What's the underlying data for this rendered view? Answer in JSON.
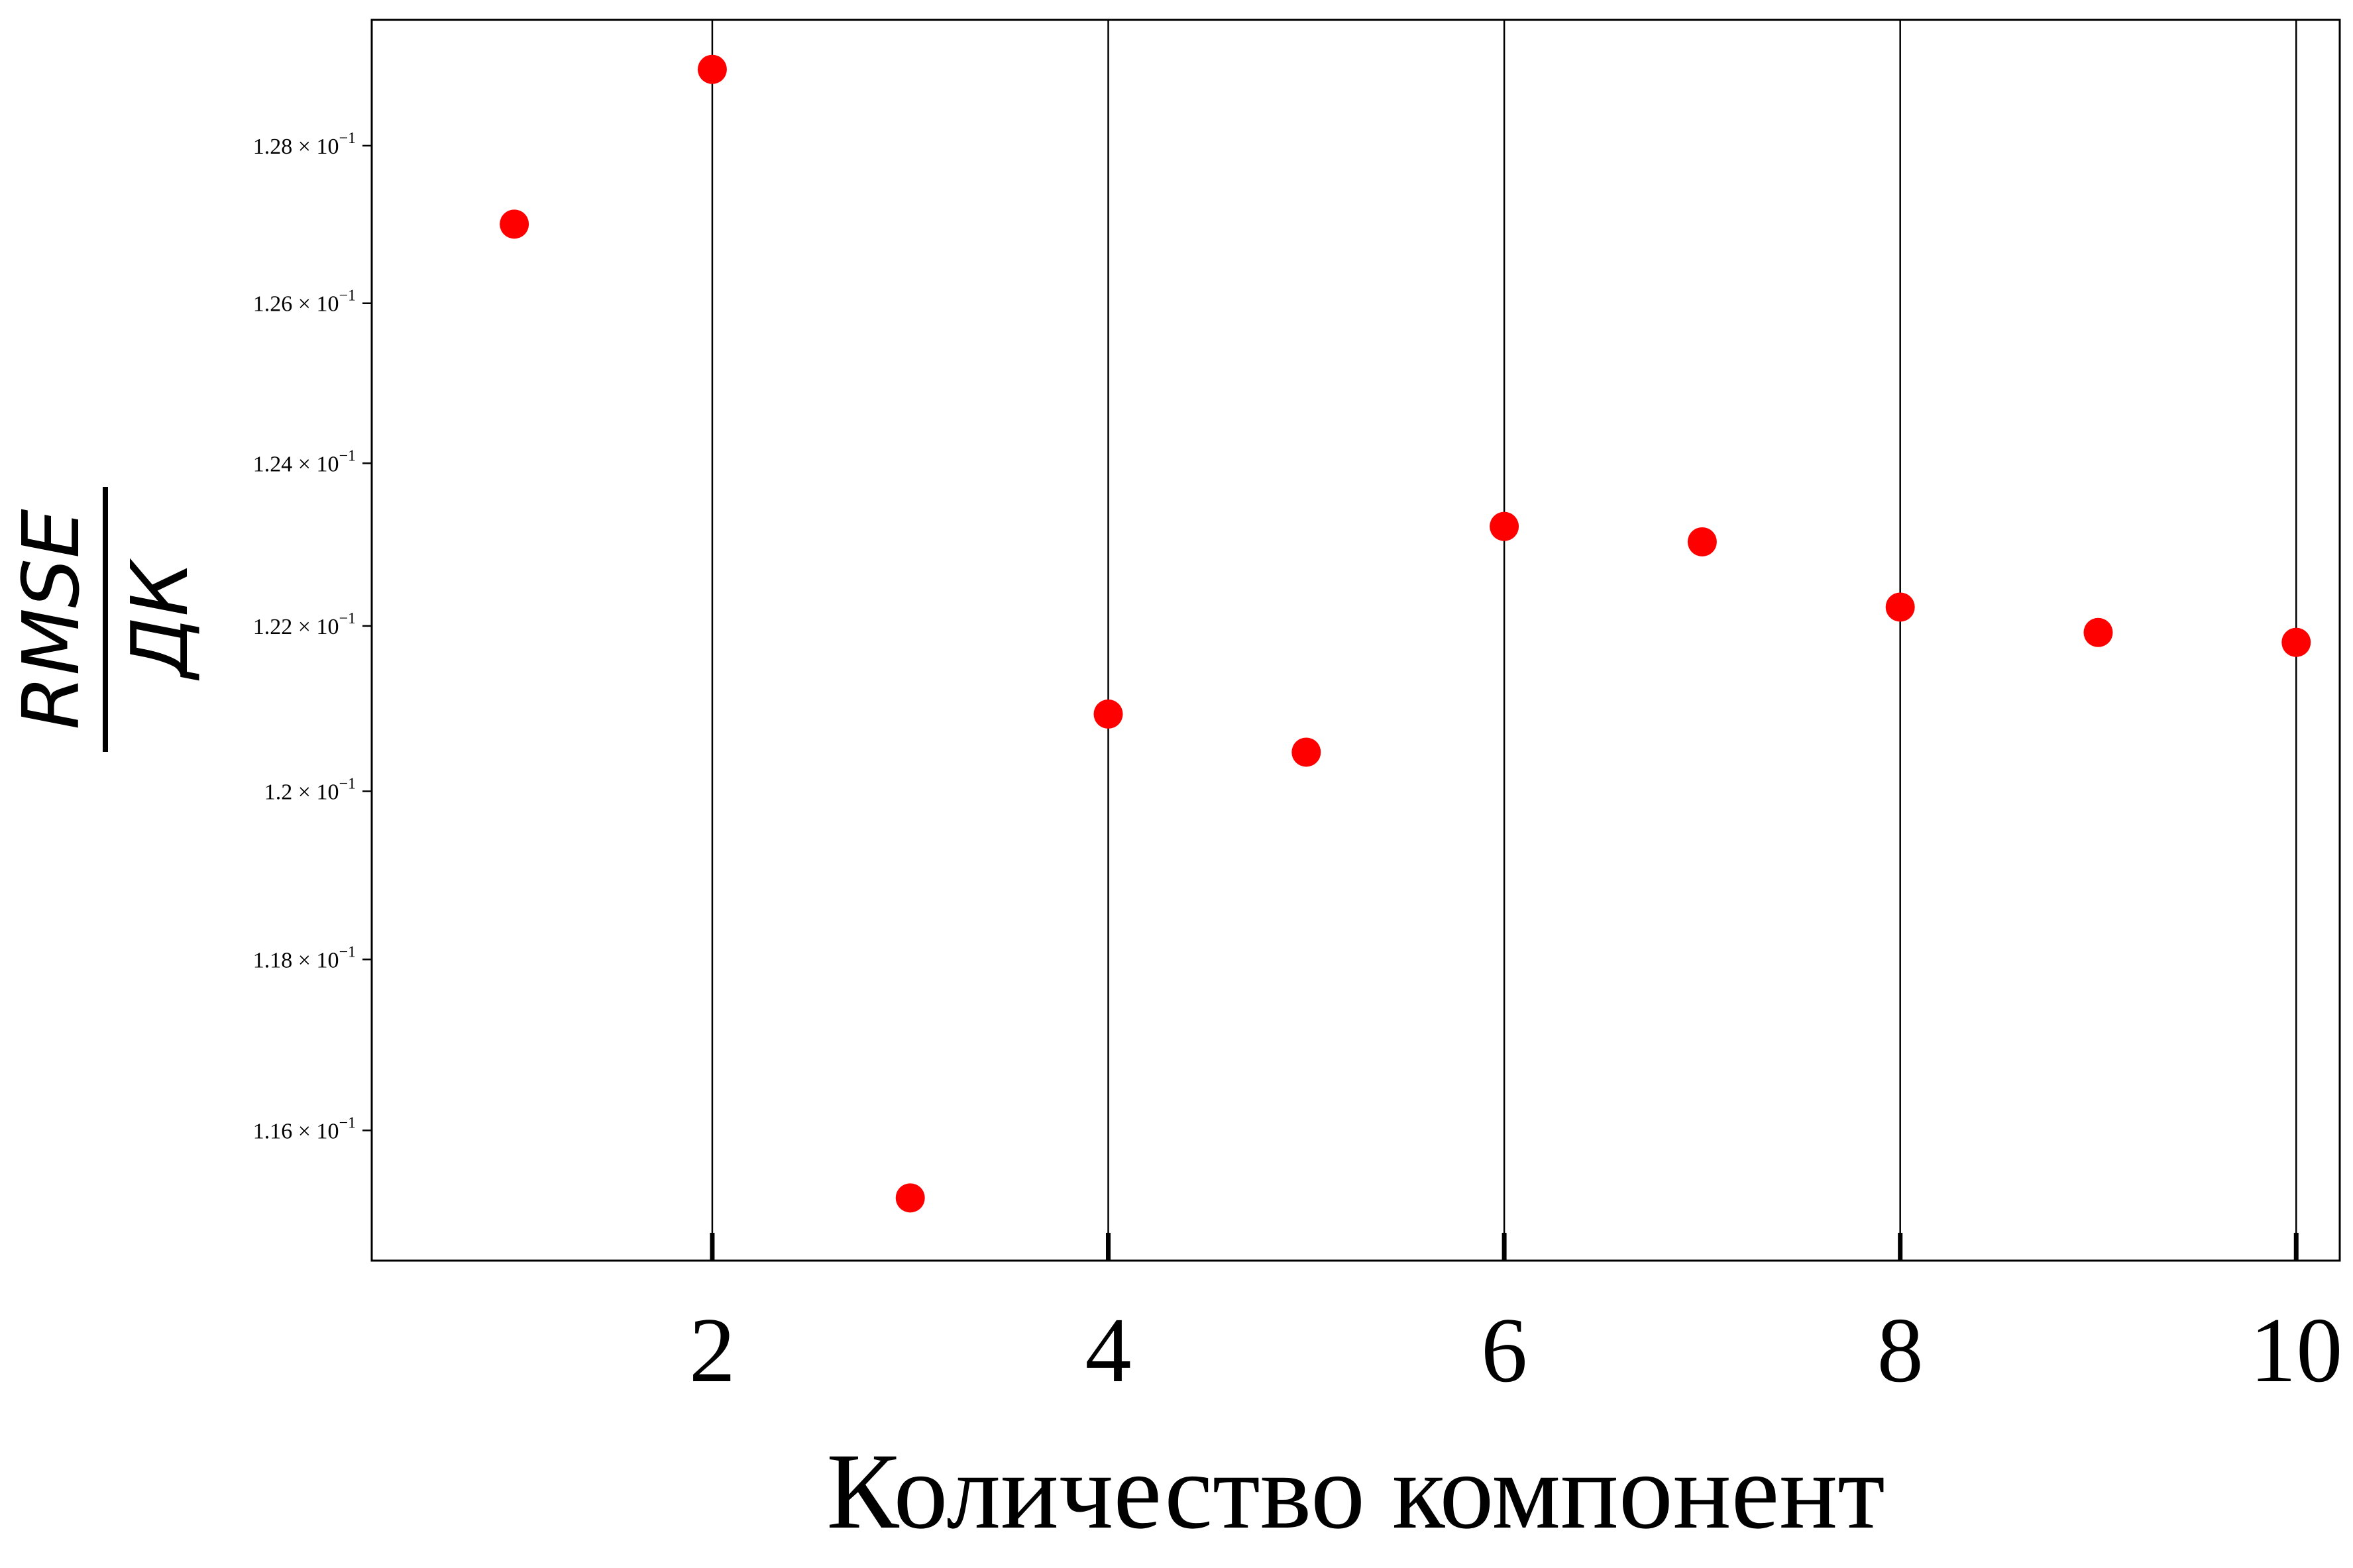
{
  "chart_data": {
    "type": "scatter",
    "xlabel": "Количество компонент",
    "ylabel": {
      "numerator": "RMSE",
      "denominator": "ДК"
    },
    "x": [
      1,
      2,
      3,
      4,
      5,
      6,
      7,
      8,
      9,
      10
    ],
    "y": [
      0.127,
      0.12898,
      0.11522,
      0.12093,
      0.12047,
      0.12322,
      0.12303,
      0.12223,
      0.12192,
      0.1218
    ],
    "xlim": [
      0.28,
      10.22
    ],
    "ylim": [
      0.1145,
      0.12962
    ],
    "yscale": "log",
    "xticks": [
      2,
      4,
      6,
      8,
      10
    ],
    "xtick_labels": [
      "2",
      "4",
      "6",
      "8",
      "10"
    ],
    "yticks": [
      0.116,
      0.118,
      0.12,
      0.122,
      0.124,
      0.126,
      0.128
    ],
    "ytick_labels": [
      {
        "mantissa": "1.16",
        "exp": "−1"
      },
      {
        "mantissa": "1.18",
        "exp": "−1"
      },
      {
        "mantissa": "1.2",
        "exp": "−1"
      },
      {
        "mantissa": "1.22",
        "exp": "−1"
      },
      {
        "mantissa": "1.24",
        "exp": "−1"
      },
      {
        "mantissa": "1.26",
        "exp": "−1"
      },
      {
        "mantissa": "1.28",
        "exp": "−1"
      }
    ],
    "grid": "x-major",
    "marker_color": "#ff0000"
  }
}
